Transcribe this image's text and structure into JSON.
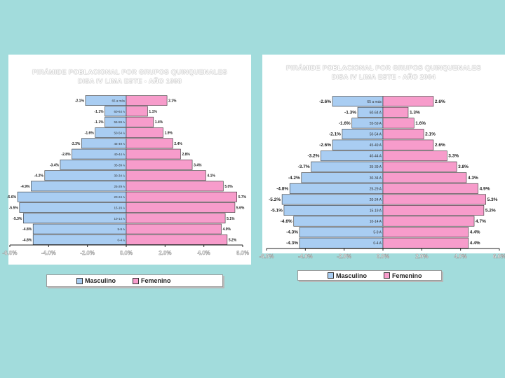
{
  "colors": {
    "male": "#a9cdf2",
    "female": "#f79ccb",
    "axis": "#222222"
  },
  "chart_data": [
    {
      "type": "bar",
      "title": "PIRÁMIDE POBLACIONAL POR GRUPOS QUINQUENALES",
      "subtitle": "DISA IV LIMA ESTE - AÑO 1998",
      "categories": [
        "65 a más",
        "60-64 A",
        "55-59 A",
        "50-54 A",
        "45-49 A",
        "40-44 A",
        "35-39 A",
        "30-34 A",
        "25-29 A",
        "20-24 A",
        "15-19 A",
        "10-14 A",
        "5-9 A",
        "0-4 A"
      ],
      "xlim": [
        -6,
        6
      ],
      "xticks": [
        "-6.0%",
        "-4.0%",
        "-2.0%",
        "0.0%",
        "2.0%",
        "4.0%",
        "6.0%"
      ],
      "series": [
        {
          "name": "Masculino",
          "values": [
            -2.1,
            -1.1,
            -1.1,
            -1.6,
            -2.3,
            -2.8,
            -3.4,
            -4.2,
            -4.9,
            -5.6,
            -5.5,
            -5.3,
            -4.8,
            -4.8
          ],
          "labels": [
            "-2.1%",
            "-1.1%",
            "-1.1%",
            "-1.6%",
            "-2.3%",
            "-2.8%",
            "-3.4%",
            "-4.2%",
            "-4.9%",
            "-5.6%",
            "-5.5%",
            "-5.3%",
            "-4.8%",
            "-4.8%"
          ]
        },
        {
          "name": "Femenino",
          "values": [
            2.1,
            1.1,
            1.4,
            1.9,
            2.4,
            2.8,
            3.4,
            4.1,
            5.0,
            5.7,
            5.6,
            5.1,
            4.9,
            5.2
          ],
          "labels": [
            "2.1%",
            "1.1%",
            "1.4%",
            "1.9%",
            "2.4%",
            "2.8%",
            "3.4%",
            "4.1%",
            "5.0%",
            "5.7%",
            "5.6%",
            "5.1%",
            "4.9%",
            "5.2%"
          ]
        }
      ]
    },
    {
      "type": "bar",
      "title": "PIRÁMIDE POBLACIONAL POR GRUPOS QUINQUENALES",
      "subtitle": "DISA IV LIMA ESTE - AÑO 2004",
      "categories": [
        "65 a más",
        "60-64 A",
        "55-59 A",
        "50-54 A",
        "45-49 A",
        "40-44 A",
        "35-39 A",
        "30-34 A",
        "25-29 A",
        "20-24 A",
        "15-19 A",
        "10-14 A",
        "5-9 A",
        "0-4 A"
      ],
      "xlim": [
        -6,
        6
      ],
      "xticks": [
        "-6.0%",
        "-4.0%",
        "-2.0%",
        "0.0%",
        "2.0%",
        "4.0%",
        "6.0%"
      ],
      "series": [
        {
          "name": "Masculino",
          "values": [
            -2.6,
            -1.3,
            -1.6,
            -2.1,
            -2.6,
            -3.2,
            -3.7,
            -4.2,
            -4.8,
            -5.2,
            -5.1,
            -4.6,
            -4.3,
            -4.3
          ],
          "labels": [
            "-2.6%",
            "-1.3%",
            "-1.6%",
            "-2.1%",
            "-2.6%",
            "-3.2%",
            "-3.7%",
            "-4.2%",
            "-4.8%",
            "-5.2%",
            "-5.1%",
            "-4.6%",
            "-4.3%",
            "-4.3%"
          ]
        },
        {
          "name": "Femenino",
          "values": [
            2.6,
            1.3,
            1.6,
            2.1,
            2.6,
            3.3,
            3.8,
            4.3,
            4.9,
            5.3,
            5.2,
            4.7,
            4.4,
            4.4
          ],
          "labels": [
            "2.6%",
            "1.3%",
            "1.6%",
            "2.1%",
            "2.6%",
            "3.3%",
            "3.8%",
            "4.3%",
            "4.9%",
            "5.3%",
            "5.2%",
            "4.7%",
            "4.4%",
            "4.4%"
          ]
        }
      ]
    }
  ]
}
